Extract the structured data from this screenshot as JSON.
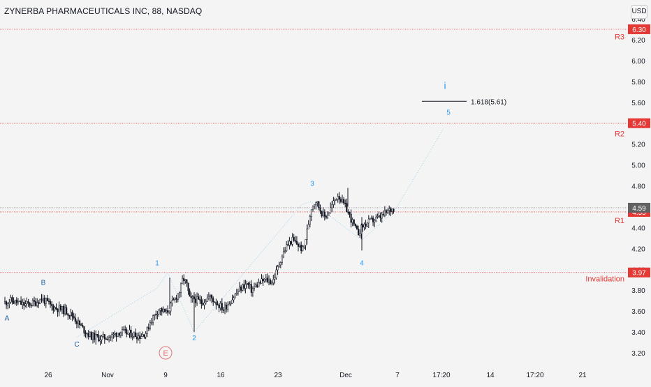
{
  "header": {
    "title": "ZYNERBA PHARMACEUTICALS INC, 88, NASDAQ",
    "currency_button": "USD"
  },
  "colors": {
    "background": "#f4f4f4",
    "candle": "#131722",
    "level_line": "#e53935",
    "level_tag": "#e53935",
    "last_price_tag": "#616161",
    "wave_blue": "#2196f3",
    "wave_dark_blue": "#1a5a9a",
    "wave_path": "#9fd3ec",
    "axis_text": "#131722",
    "circle_e": "#e57373"
  },
  "chart_data": {
    "type": "candlestick",
    "title": "ZYNERBA PHARMACEUTICALS INC, 88, NASDAQ",
    "currency": "USD",
    "price_axis": {
      "ylim": [
        3.1,
        6.42
      ],
      "tick_labels": [
        "3.20",
        "3.40",
        "3.60",
        "3.80",
        "4.00",
        "4.20",
        "4.40",
        "4.80",
        "5.00",
        "5.20",
        "5.60",
        "5.80",
        "6.00",
        "6.20",
        "6.40"
      ],
      "tick_values": [
        3.2,
        3.4,
        3.6,
        3.8,
        4.0,
        4.2,
        4.4,
        4.8,
        5.0,
        5.2,
        5.6,
        5.8,
        6.0,
        6.2,
        6.4
      ]
    },
    "time_axis": {
      "tick_labels": [
        "26",
        "Nov",
        "9",
        "16",
        "23",
        "Dec",
        "7",
        "17:20",
        "14",
        "17:20",
        "21"
      ]
    },
    "levels": [
      {
        "name": "R3",
        "value": 6.3,
        "tag": "6.30"
      },
      {
        "name": "R2",
        "value": 5.4,
        "tag": "5.40"
      },
      {
        "name": "R1",
        "value": 4.55,
        "tag": "4.55"
      },
      {
        "name": "Invalidation",
        "value": 3.97,
        "tag": "3.97"
      }
    ],
    "last_price": {
      "value": 4.59,
      "tag": "4.59"
    },
    "fib_target": {
      "label": "1.618(5.61)",
      "value": 5.61
    },
    "wave_labels": [
      {
        "label": "A",
        "price": 3.53,
        "style": "dark"
      },
      {
        "label": "B",
        "price": 3.87,
        "style": "dark"
      },
      {
        "label": "C",
        "price": 3.28,
        "style": "dark"
      },
      {
        "label": "E",
        "price": 3.2,
        "style": "circle"
      },
      {
        "label": "1",
        "price": 4.06,
        "style": "light"
      },
      {
        "label": "2",
        "price": 3.34,
        "style": "light"
      },
      {
        "label": "3",
        "price": 4.82,
        "style": "light"
      },
      {
        "label": "4",
        "price": 4.06,
        "style": "light"
      },
      {
        "label": "5",
        "price": 5.5,
        "style": "light"
      },
      {
        "label": "i",
        "price": 5.75,
        "style": "light"
      }
    ],
    "wave_path_prices": [
      3.35,
      3.82,
      3.97,
      3.4,
      4.62,
      4.65,
      4.28,
      4.56,
      5.35
    ],
    "price_path": [
      3.68,
      3.7,
      3.66,
      3.68,
      3.72,
      3.64,
      3.6,
      3.55,
      3.5,
      3.42,
      3.36,
      3.34,
      3.36,
      3.4,
      3.38,
      3.36,
      3.4,
      3.5,
      3.6,
      3.62,
      3.6,
      3.58,
      3.8,
      3.92,
      3.86,
      3.7,
      3.72,
      3.68,
      3.74,
      3.68,
      3.62,
      3.7,
      3.8,
      3.84,
      3.86,
      3.8,
      3.84,
      3.88,
      3.9,
      3.88,
      3.98,
      4.1,
      4.22,
      4.28,
      4.24,
      4.18,
      4.38,
      4.6,
      4.66,
      4.58,
      4.5,
      4.54,
      4.62,
      4.72,
      4.64,
      4.58,
      4.46,
      4.34,
      4.42,
      4.46,
      4.5,
      4.56,
      4.59
    ],
    "grid": false
  }
}
